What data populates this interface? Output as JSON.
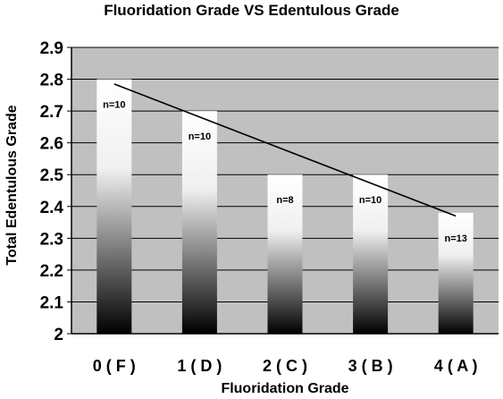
{
  "chart_data": {
    "type": "bar",
    "title": "Fluoridation Grade VS Edentulous Grade",
    "xlabel": "Fluoridation Grade",
    "ylabel": "Total Edentulous Grade",
    "categories": [
      "0 ( F )",
      "1 ( D )",
      "2 ( C )",
      "3 ( B )",
      "4 ( A )"
    ],
    "values": [
      2.8,
      2.7,
      2.5,
      2.5,
      2.38
    ],
    "bar_labels": [
      "n=10",
      "n=10",
      "n=8",
      "n=10",
      "n=13"
    ],
    "ylim": [
      2,
      2.9
    ],
    "yticks": [
      "2",
      "2.1",
      "2.2",
      "2.3",
      "2.4",
      "2.5",
      "2.6",
      "2.7",
      "2.8",
      "2.9"
    ],
    "trendline": {
      "type": "linear",
      "start": 2.785,
      "end": 2.37
    },
    "grid": true,
    "legend": "none",
    "colors": {
      "plot_background": "#c0c0c0",
      "bar_top": "#ffffff",
      "bar_bottom": "#000000",
      "trendline": "#000000"
    }
  }
}
